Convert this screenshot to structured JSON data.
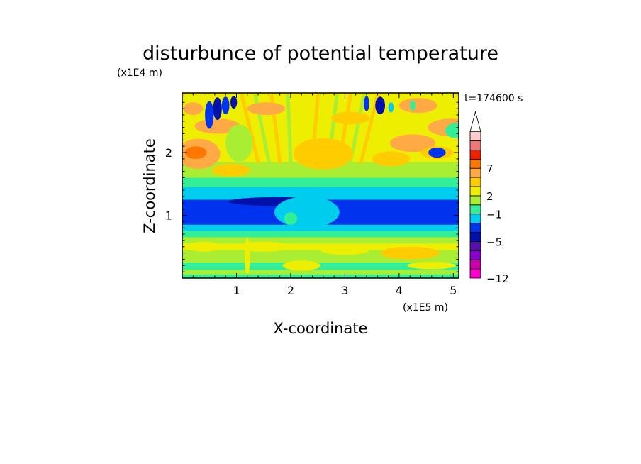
{
  "chart_data": {
    "type": "heatmap",
    "title": "disturbunce of potential temperature",
    "xlabel": "X-coordinate",
    "ylabel": "Z-coordinate",
    "x_scale_label": "(x1E5 m)",
    "y_scale_label": "(x1E4 m)",
    "time_label": "t=174600 s",
    "xlim": [
      0,
      5.1
    ],
    "ylim": [
      0,
      2.95
    ],
    "x_ticks": [
      {
        "value": 1,
        "label": "1"
      },
      {
        "value": 2,
        "label": "2"
      },
      {
        "value": 3,
        "label": "3"
      },
      {
        "value": 4,
        "label": "4"
      },
      {
        "value": 5,
        "label": "5"
      }
    ],
    "y_ticks": [
      {
        "value": 1,
        "label": "1"
      },
      {
        "value": 2,
        "label": "2"
      }
    ],
    "colorbar": {
      "extend": "max",
      "colors_bottom_to_top": [
        "#ff00cc",
        "#cc00aa",
        "#8800cc",
        "#5511aa",
        "#0011aa",
        "#0033ee",
        "#00ccee",
        "#33ee99",
        "#aaee33",
        "#eeee00",
        "#ffcc00",
        "#ffaa44",
        "#ff7700",
        "#ee2200",
        "#ee7777",
        "#ffcccc"
      ],
      "tick_labels": [
        {
          "level": 0,
          "label": "−12"
        },
        {
          "level": 4,
          "label": "−5"
        },
        {
          "level": 7,
          "label": "−1"
        },
        {
          "level": 9,
          "label": "2"
        },
        {
          "level": 12,
          "label": "7"
        }
      ]
    },
    "field_bands": [
      {
        "z": [
          0.0,
          0.06
        ],
        "color_index": 7
      },
      {
        "z": [
          0.06,
          0.13
        ],
        "color_index": 8
      },
      {
        "z": [
          0.13,
          0.25
        ],
        "color_index": 7
      },
      {
        "z": [
          0.25,
          0.45
        ],
        "color_index": 8
      },
      {
        "z": [
          0.45,
          0.55
        ],
        "color_index": 9
      },
      {
        "z": [
          0.55,
          0.65
        ],
        "color_index": 8
      },
      {
        "z": [
          0.65,
          0.75
        ],
        "color_index": 7
      },
      {
        "z": [
          0.75,
          0.85
        ],
        "color_index": 6
      },
      {
        "z": [
          0.85,
          1.25
        ],
        "color_index": 5
      },
      {
        "z": [
          1.25,
          1.45
        ],
        "color_index": 6
      },
      {
        "z": [
          1.45,
          1.6
        ],
        "color_index": 7
      },
      {
        "z": [
          1.6,
          1.85
        ],
        "color_index": 8
      },
      {
        "z": [
          1.85,
          2.95
        ],
        "color_index": 9
      }
    ],
    "features": [
      {
        "x": 2.6,
        "z": 1.98,
        "rx": 0.55,
        "rz": 0.25,
        "color_index": 10
      },
      {
        "x": 0.3,
        "z": 1.98,
        "rx": 0.4,
        "rz": 0.24,
        "color_index": 11
      },
      {
        "x": 0.25,
        "z": 2.0,
        "rx": 0.2,
        "rz": 0.1,
        "color_index": 12
      },
      {
        "x": 0.65,
        "z": 2.42,
        "rx": 0.42,
        "rz": 0.12,
        "color_index": 11
      },
      {
        "x": 0.9,
        "z": 1.72,
        "rx": 0.35,
        "rz": 0.1,
        "color_index": 10
      },
      {
        "x": 1.05,
        "z": 2.15,
        "rx": 0.25,
        "rz": 0.3,
        "color_index": 8
      },
      {
        "x": 4.95,
        "z": 2.4,
        "rx": 0.42,
        "rz": 0.14,
        "color_index": 11
      },
      {
        "x": 4.25,
        "z": 2.15,
        "rx": 0.42,
        "rz": 0.14,
        "color_index": 11
      },
      {
        "x": 3.85,
        "z": 1.9,
        "rx": 0.35,
        "rz": 0.12,
        "color_index": 10
      },
      {
        "x": 4.7,
        "z": 2.0,
        "rx": 0.3,
        "rz": 0.1,
        "color_index": 10
      },
      {
        "x": 4.7,
        "z": 2.0,
        "rx": 0.16,
        "rz": 0.08,
        "color_index": 5
      },
      {
        "x": 5.05,
        "z": 2.35,
        "rx": 0.2,
        "rz": 0.12,
        "color_index": 7
      },
      {
        "x": 3.1,
        "z": 2.55,
        "rx": 0.35,
        "rz": 0.1,
        "color_index": 10
      },
      {
        "x": 1.55,
        "z": 2.7,
        "rx": 0.35,
        "rz": 0.1,
        "color_index": 11
      },
      {
        "x": 4.35,
        "z": 2.75,
        "rx": 0.35,
        "rz": 0.12,
        "color_index": 11
      },
      {
        "x": 0.2,
        "z": 2.7,
        "rx": 0.18,
        "rz": 0.1,
        "color_index": 11
      },
      {
        "x": 0.5,
        "z": 2.6,
        "rx": 0.08,
        "rz": 0.22,
        "color_index": 5
      },
      {
        "x": 0.65,
        "z": 2.7,
        "rx": 0.08,
        "rz": 0.18,
        "color_index": 4
      },
      {
        "x": 0.8,
        "z": 2.75,
        "rx": 0.07,
        "rz": 0.14,
        "color_index": 5
      },
      {
        "x": 0.95,
        "z": 2.8,
        "rx": 0.06,
        "rz": 0.1,
        "color_index": 4
      },
      {
        "x": 3.4,
        "z": 2.78,
        "rx": 0.05,
        "rz": 0.12,
        "color_index": 5
      },
      {
        "x": 3.65,
        "z": 2.75,
        "rx": 0.09,
        "rz": 0.14,
        "color_index": 4
      },
      {
        "x": 3.85,
        "z": 2.72,
        "rx": 0.05,
        "rz": 0.08,
        "color_index": 6
      },
      {
        "x": 4.25,
        "z": 2.75,
        "rx": 0.05,
        "rz": 0.08,
        "color_index": 7
      },
      {
        "x": 1.75,
        "z": 1.22,
        "rx": 0.9,
        "rz": 0.07,
        "color_index": 4
      },
      {
        "x": 2.3,
        "z": 1.05,
        "rx": 0.6,
        "rz": 0.25,
        "color_index": 6
      },
      {
        "x": 2.0,
        "z": 0.95,
        "rx": 0.12,
        "rz": 0.1,
        "color_index": 7
      },
      {
        "x": 0.4,
        "z": 0.5,
        "rx": 0.3,
        "rz": 0.08,
        "color_index": 9
      },
      {
        "x": 1.5,
        "z": 0.5,
        "rx": 0.5,
        "rz": 0.08,
        "color_index": 9
      },
      {
        "x": 3.0,
        "z": 0.45,
        "rx": 0.45,
        "rz": 0.08,
        "color_index": 9
      },
      {
        "x": 4.2,
        "z": 0.4,
        "rx": 0.55,
        "rz": 0.1,
        "color_index": 10
      },
      {
        "x": 2.2,
        "z": 0.2,
        "rx": 0.35,
        "rz": 0.08,
        "color_index": 9
      },
      {
        "x": 4.6,
        "z": 0.2,
        "rx": 0.45,
        "rz": 0.06,
        "color_index": 9
      },
      {
        "x": 1.2,
        "z": 0.35,
        "rx": 0.05,
        "rz": 0.3,
        "color_index": 9
      }
    ],
    "wave_streaks": [
      {
        "x0": 1.4,
        "z0": 1.85,
        "x1": 1.1,
        "z1": 2.9,
        "color_index": 10
      },
      {
        "x0": 1.6,
        "z0": 1.85,
        "x1": 1.35,
        "z1": 2.9,
        "color_index": 8
      },
      {
        "x0": 1.8,
        "z0": 1.85,
        "x1": 1.65,
        "z1": 2.9,
        "color_index": 10
      },
      {
        "x0": 2.0,
        "z0": 1.85,
        "x1": 1.95,
        "z1": 2.9,
        "color_index": 8
      },
      {
        "x0": 2.4,
        "z0": 1.85,
        "x1": 2.5,
        "z1": 2.9,
        "color_index": 10
      },
      {
        "x0": 2.7,
        "z0": 1.85,
        "x1": 2.85,
        "z1": 2.9,
        "color_index": 8
      },
      {
        "x0": 2.9,
        "z0": 1.85,
        "x1": 3.1,
        "z1": 2.9,
        "color_index": 10
      },
      {
        "x0": 3.1,
        "z0": 1.85,
        "x1": 3.35,
        "z1": 2.9,
        "color_index": 8
      },
      {
        "x0": 3.3,
        "z0": 1.85,
        "x1": 3.6,
        "z1": 2.9,
        "color_index": 10
      }
    ]
  }
}
